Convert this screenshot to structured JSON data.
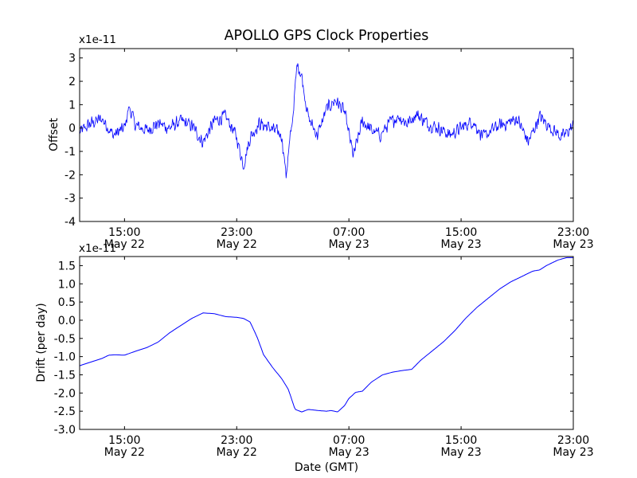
{
  "chart_data": [
    {
      "type": "line",
      "title": "APOLLO GPS Clock Properties",
      "xlabel": "",
      "ylabel": "Offset",
      "y_offset_text": "x1e-11",
      "ylim": [
        -4,
        3.4
      ],
      "xlim_hours": [
        0,
        22
      ],
      "yticks": [
        {
          "value": 3,
          "label": "3"
        },
        {
          "value": 2,
          "label": "2"
        },
        {
          "value": 1,
          "label": "1"
        },
        {
          "value": 0,
          "label": "0"
        },
        {
          "value": -1,
          "label": "-1"
        },
        {
          "value": -2,
          "label": "-2"
        },
        {
          "value": -3,
          "label": "-3"
        },
        {
          "value": -4,
          "label": "-4"
        }
      ],
      "xticks": [
        {
          "hours": 2,
          "time": "15:00",
          "date": "May 22"
        },
        {
          "hours": 7,
          "time": "23:00",
          "date": "May 22"
        },
        {
          "hours": 12,
          "time": "07:00",
          "date": "May 23"
        },
        {
          "hours": 17,
          "time": "15:00",
          "date": "May 23"
        },
        {
          "hours": 22,
          "time": "23:00",
          "date": "May 23"
        }
      ],
      "grid": false,
      "series": [
        {
          "name": "offset",
          "color": "#0000ff",
          "noisy": true,
          "x": [
            0,
            0.5,
            1.0,
            1.5,
            2.0,
            2.2,
            2.5,
            3.0,
            3.5,
            4.0,
            4.5,
            5.0,
            5.5,
            6.0,
            6.5,
            6.8,
            7.0,
            7.3,
            7.6,
            8.0,
            8.5,
            9.0,
            9.2,
            9.5,
            9.7,
            9.9,
            10.2,
            10.6,
            11.0,
            11.4,
            11.8,
            12.2,
            12.6,
            13.0,
            13.4,
            13.8,
            14.2,
            14.6,
            15.0,
            15.5,
            16.0,
            16.5,
            17.0,
            17.5,
            18.0,
            18.5,
            19.0,
            19.5,
            20.0,
            20.5,
            21.0,
            21.5,
            22.0
          ],
          "values": [
            -0.2,
            0.2,
            0.4,
            -0.3,
            0.0,
            0.9,
            0.1,
            -0.1,
            0.2,
            0.0,
            0.3,
            0.1,
            -0.6,
            0.3,
            0.5,
            0.0,
            -0.4,
            -1.6,
            -0.4,
            0.2,
            0.0,
            -0.3,
            -2.0,
            0.5,
            2.8,
            2.2,
            0.4,
            -0.3,
            0.8,
            1.2,
            0.7,
            -1.2,
            0.3,
            -0.1,
            -0.3,
            0.2,
            0.5,
            0.2,
            0.6,
            0.2,
            0.0,
            -0.3,
            0.0,
            0.3,
            -0.4,
            0.0,
            0.2,
            0.4,
            -0.6,
            0.5,
            0.0,
            -0.4,
            0.1
          ],
          "noise_amplitude": 0.35
        }
      ]
    },
    {
      "type": "line",
      "title": "",
      "xlabel": "Date (GMT)",
      "ylabel": "Drift (per day)",
      "y_offset_text": "x1e-11",
      "ylim": [
        -3.0,
        1.75
      ],
      "xlim_hours": [
        0,
        22
      ],
      "yticks": [
        {
          "value": 1.5,
          "label": "1.5"
        },
        {
          "value": 1.0,
          "label": "1.0"
        },
        {
          "value": 0.5,
          "label": "0.5"
        },
        {
          "value": 0.0,
          "label": "0.0"
        },
        {
          "value": -0.5,
          "label": "-0.5"
        },
        {
          "value": -1.0,
          "label": "-1.0"
        },
        {
          "value": -1.5,
          "label": "-1.5"
        },
        {
          "value": -2.0,
          "label": "-2.0"
        },
        {
          "value": -2.5,
          "label": "-2.5"
        },
        {
          "value": -3.0,
          "label": "-3.0"
        }
      ],
      "xticks": [
        {
          "hours": 2,
          "time": "15:00",
          "date": "May 22"
        },
        {
          "hours": 7,
          "time": "23:00",
          "date": "May 22"
        },
        {
          "hours": 12,
          "time": "07:00",
          "date": "May 23"
        },
        {
          "hours": 17,
          "time": "15:00",
          "date": "May 23"
        },
        {
          "hours": 22,
          "time": "23:00",
          "date": "May 23"
        }
      ],
      "grid": false,
      "series": [
        {
          "name": "drift",
          "color": "#0000ff",
          "noisy": false,
          "x": [
            0,
            0.5,
            1.0,
            1.3,
            1.6,
            2.0,
            2.5,
            3.0,
            3.5,
            4.0,
            4.5,
            5.0,
            5.5,
            6.0,
            6.5,
            7.0,
            7.3,
            7.6,
            7.9,
            8.2,
            8.6,
            9.0,
            9.3,
            9.6,
            9.9,
            10.2,
            10.6,
            11.0,
            11.2,
            11.5,
            11.8,
            12.0,
            12.3,
            12.6,
            13.0,
            13.5,
            14.0,
            14.4,
            14.8,
            15.2,
            15.7,
            16.2,
            16.7,
            17.2,
            17.7,
            18.2,
            18.7,
            19.2,
            19.7,
            20.2,
            20.5,
            20.8,
            21.3,
            21.7,
            22.0
          ],
          "values": [
            -1.25,
            -1.15,
            -1.05,
            -0.96,
            -0.95,
            -0.96,
            -0.85,
            -0.75,
            -0.6,
            -0.35,
            -0.15,
            0.05,
            0.2,
            0.18,
            0.1,
            0.08,
            0.05,
            -0.05,
            -0.45,
            -0.95,
            -1.3,
            -1.6,
            -1.9,
            -2.45,
            -2.52,
            -2.45,
            -2.48,
            -2.5,
            -2.48,
            -2.52,
            -2.35,
            -2.15,
            -1.98,
            -1.95,
            -1.7,
            -1.5,
            -1.42,
            -1.38,
            -1.35,
            -1.1,
            -0.85,
            -0.6,
            -0.3,
            0.05,
            0.35,
            0.6,
            0.85,
            1.05,
            1.2,
            1.35,
            1.38,
            1.5,
            1.65,
            1.72,
            1.72
          ]
        }
      ]
    }
  ]
}
